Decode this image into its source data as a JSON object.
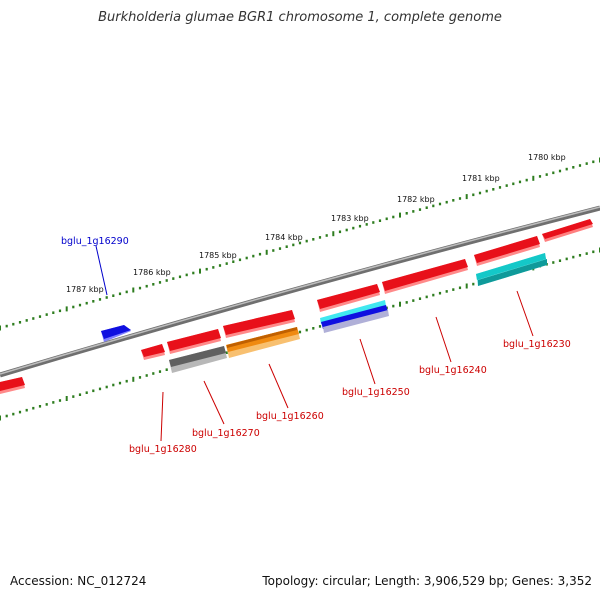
{
  "title": "Burkholderia glumae BGR1 chromosome 1, complete genome",
  "footer": {
    "accession": "Accession: NC_012724",
    "summary": "Topology: circular; Length: 3,906,529 bp; Genes: 3,352"
  },
  "scale_labels": [
    "1780 kbp",
    "1781 kbp",
    "1782 kbp",
    "1783 kbp",
    "1784 kbp",
    "1785 kbp",
    "1786 kbp",
    "1787 kbp"
  ],
  "gene_labels": {
    "bglu_1g16290": "bglu_1g16290",
    "bglu_1g16280": "bglu_1g16280",
    "bglu_1g16270": "bglu_1g16270",
    "bglu_1g16260": "bglu_1g16260",
    "bglu_1g16250": "bglu_1g16250",
    "bglu_1g16240": "bglu_1g16240",
    "bglu_1g16230": "bglu_1g16230"
  },
  "colors": {
    "backbone": "#8a8a8a",
    "tick": "#2e7d1f",
    "gene_red": "#e8101a",
    "gene_blue": "#1010e0",
    "gene_gray": "#606060",
    "gene_orange": "#f08a10",
    "gene_cyan": "#14c8c8",
    "label_red": "#cc0000",
    "label_blue": "#0000cc"
  }
}
